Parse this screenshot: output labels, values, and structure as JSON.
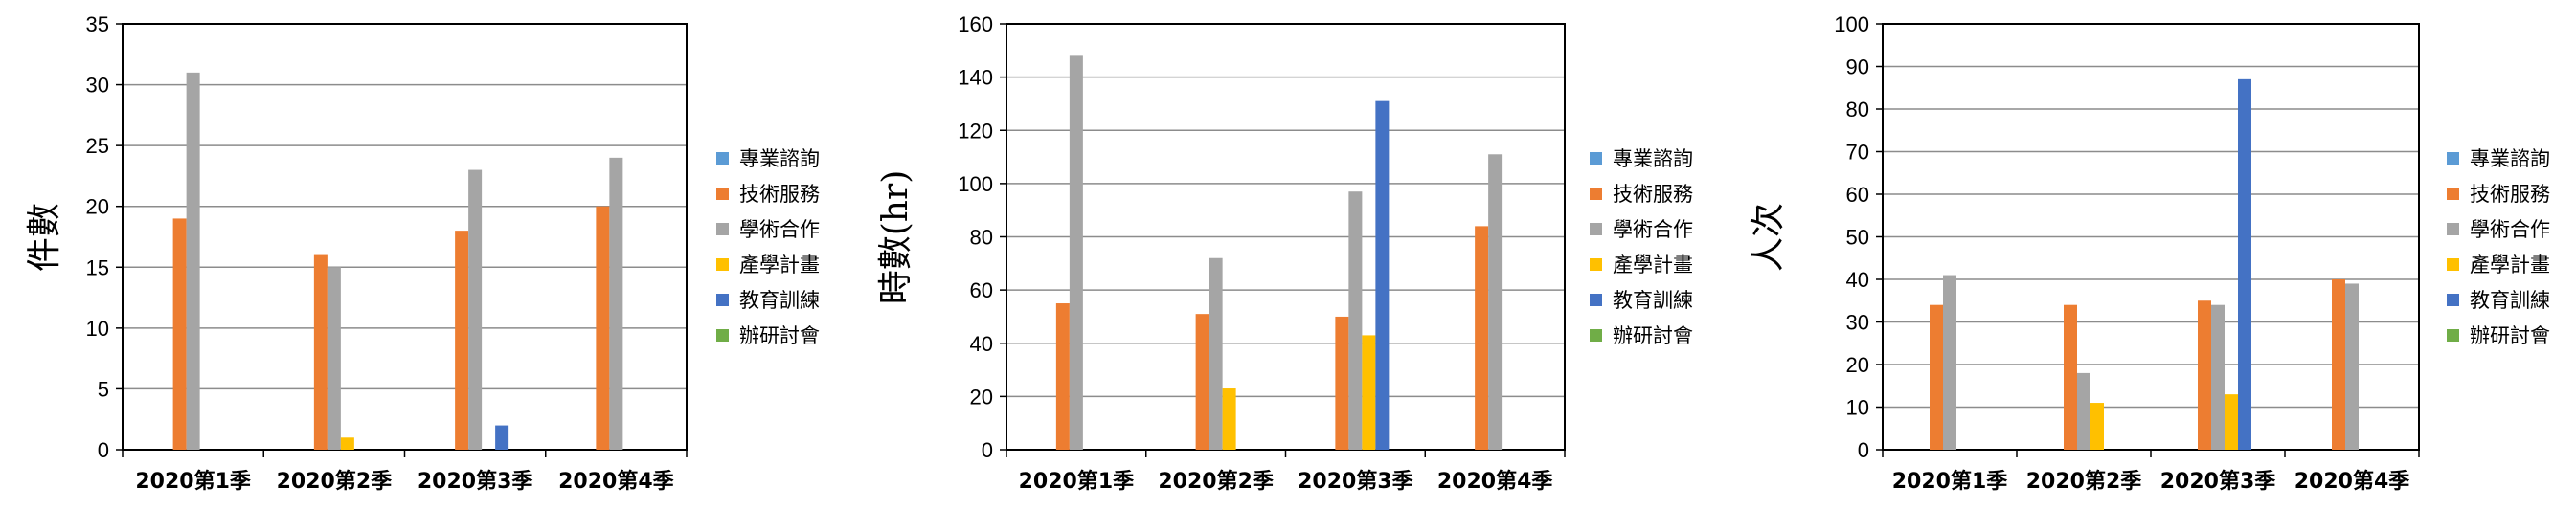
{
  "chart_data": [
    {
      "type": "bar",
      "ylabel": "件數",
      "ylim": [
        0,
        35
      ],
      "ytick_step": 5,
      "grid": true,
      "legend_position": "right",
      "categories": [
        "2020第1季",
        "2020第2季",
        "2020第3季",
        "2020第4季"
      ],
      "series": [
        {
          "name": "專業諮詢",
          "color": "#5b9bd5",
          "values": [
            0,
            0,
            0,
            0
          ]
        },
        {
          "name": "技術服務",
          "color": "#ed7d31",
          "values": [
            19,
            16,
            18,
            20
          ]
        },
        {
          "name": "學術合作",
          "color": "#a5a5a5",
          "values": [
            31,
            15,
            23,
            24
          ]
        },
        {
          "name": "產學計畫",
          "color": "#ffc000",
          "values": [
            0,
            1,
            0,
            0
          ]
        },
        {
          "name": "教育訓練",
          "color": "#4472c4",
          "values": [
            0,
            0,
            2,
            0
          ]
        },
        {
          "name": "辦研討會",
          "color": "#70ad47",
          "values": [
            0,
            0,
            0,
            0
          ]
        }
      ]
    },
    {
      "type": "bar",
      "ylabel": "時數(hr)",
      "ylim": [
        0,
        160
      ],
      "ytick_step": 20,
      "grid": true,
      "legend_position": "right",
      "categories": [
        "2020第1季",
        "2020第2季",
        "2020第3季",
        "2020第4季"
      ],
      "series": [
        {
          "name": "專業諮詢",
          "color": "#5b9bd5",
          "values": [
            0,
            0,
            0,
            0
          ]
        },
        {
          "name": "技術服務",
          "color": "#ed7d31",
          "values": [
            55,
            51,
            50,
            84
          ]
        },
        {
          "name": "學術合作",
          "color": "#a5a5a5",
          "values": [
            148,
            72,
            97,
            111
          ]
        },
        {
          "name": "產學計畫",
          "color": "#ffc000",
          "values": [
            0,
            23,
            43,
            0
          ]
        },
        {
          "name": "教育訓練",
          "color": "#4472c4",
          "values": [
            0,
            0,
            131,
            0
          ]
        },
        {
          "name": "辦研討會",
          "color": "#70ad47",
          "values": [
            0,
            0,
            0,
            0
          ]
        }
      ]
    },
    {
      "type": "bar",
      "ylabel": "人次",
      "ylim": [
        0,
        100
      ],
      "ytick_step": 10,
      "grid": true,
      "legend_position": "right",
      "categories": [
        "2020第1季",
        "2020第2季",
        "2020第3季",
        "2020第4季"
      ],
      "series": [
        {
          "name": "專業諮詢",
          "color": "#5b9bd5",
          "values": [
            0,
            0,
            0,
            0
          ]
        },
        {
          "name": "技術服務",
          "color": "#ed7d31",
          "values": [
            34,
            34,
            35,
            40
          ]
        },
        {
          "name": "學術合作",
          "color": "#a5a5a5",
          "values": [
            41,
            18,
            34,
            39
          ]
        },
        {
          "name": "產學計畫",
          "color": "#ffc000",
          "values": [
            0,
            11,
            13,
            0
          ]
        },
        {
          "name": "教育訓練",
          "color": "#4472c4",
          "values": [
            0,
            0,
            87,
            0
          ]
        },
        {
          "name": "辦研討會",
          "color": "#70ad47",
          "values": [
            0,
            0,
            0,
            0
          ]
        }
      ]
    }
  ]
}
